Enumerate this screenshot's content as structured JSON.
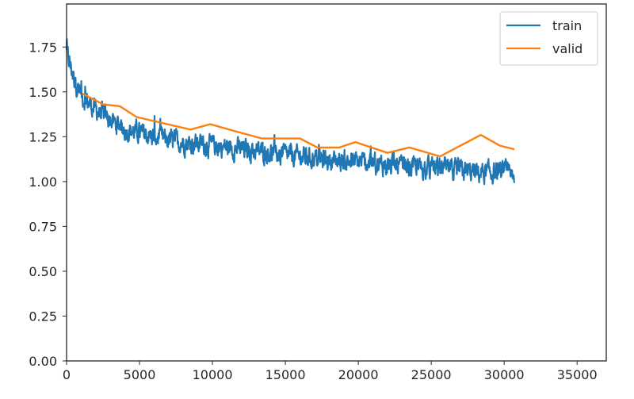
{
  "chart_data": {
    "type": "line",
    "title": "",
    "xlabel": "",
    "ylabel": "",
    "xlim": [
      0,
      37000
    ],
    "ylim": [
      0,
      1.99
    ],
    "grid": false,
    "legend_position": "upper right",
    "x_ticks": [
      0,
      5000,
      10000,
      15000,
      20000,
      25000,
      30000,
      35000
    ],
    "x_tick_labels": [
      "0",
      "5000",
      "10000",
      "15000",
      "20000",
      "25000",
      "30000",
      "35000"
    ],
    "y_ticks": [
      0.0,
      0.25,
      0.5,
      0.75,
      1.0,
      1.25,
      1.5,
      1.75
    ],
    "y_tick_labels": [
      "0.00",
      "0.25",
      "0.50",
      "0.75",
      "1.00",
      "1.25",
      "1.50",
      "1.75"
    ],
    "series": [
      {
        "name": "train",
        "color": "#1f77b4",
        "note": "noisy per-iteration training loss, approx trend shown",
        "x": [
          0,
          500,
          1000,
          2000,
          3000,
          4000,
          5000,
          6000,
          7000,
          8000,
          9000,
          10000,
          12000,
          14000,
          16000,
          18000,
          20000,
          22000,
          24000,
          26000,
          28000,
          30000,
          30700
        ],
        "y": [
          1.72,
          1.58,
          1.48,
          1.4,
          1.34,
          1.29,
          1.27,
          1.25,
          1.23,
          1.22,
          1.21,
          1.2,
          1.18,
          1.16,
          1.14,
          1.12,
          1.11,
          1.09,
          1.08,
          1.07,
          1.05,
          1.05,
          1.04
        ],
        "noise_amplitude": 0.05
      },
      {
        "name": "valid",
        "color": "#ff7f0e",
        "x": [
          1100,
          2500,
          3650,
          4800,
          6900,
          8500,
          9850,
          11600,
          13400,
          16000,
          17200,
          18700,
          19800,
          22000,
          23500,
          25600,
          28400,
          29700,
          30700
        ],
        "y": [
          1.49,
          1.43,
          1.42,
          1.36,
          1.32,
          1.29,
          1.32,
          1.28,
          1.24,
          1.24,
          1.19,
          1.19,
          1.22,
          1.16,
          1.19,
          1.14,
          1.26,
          1.2,
          1.18
        ]
      }
    ]
  },
  "legend": {
    "items": [
      {
        "label": "train",
        "color": "#1f77b4"
      },
      {
        "label": "valid",
        "color": "#ff7f0e"
      }
    ]
  }
}
